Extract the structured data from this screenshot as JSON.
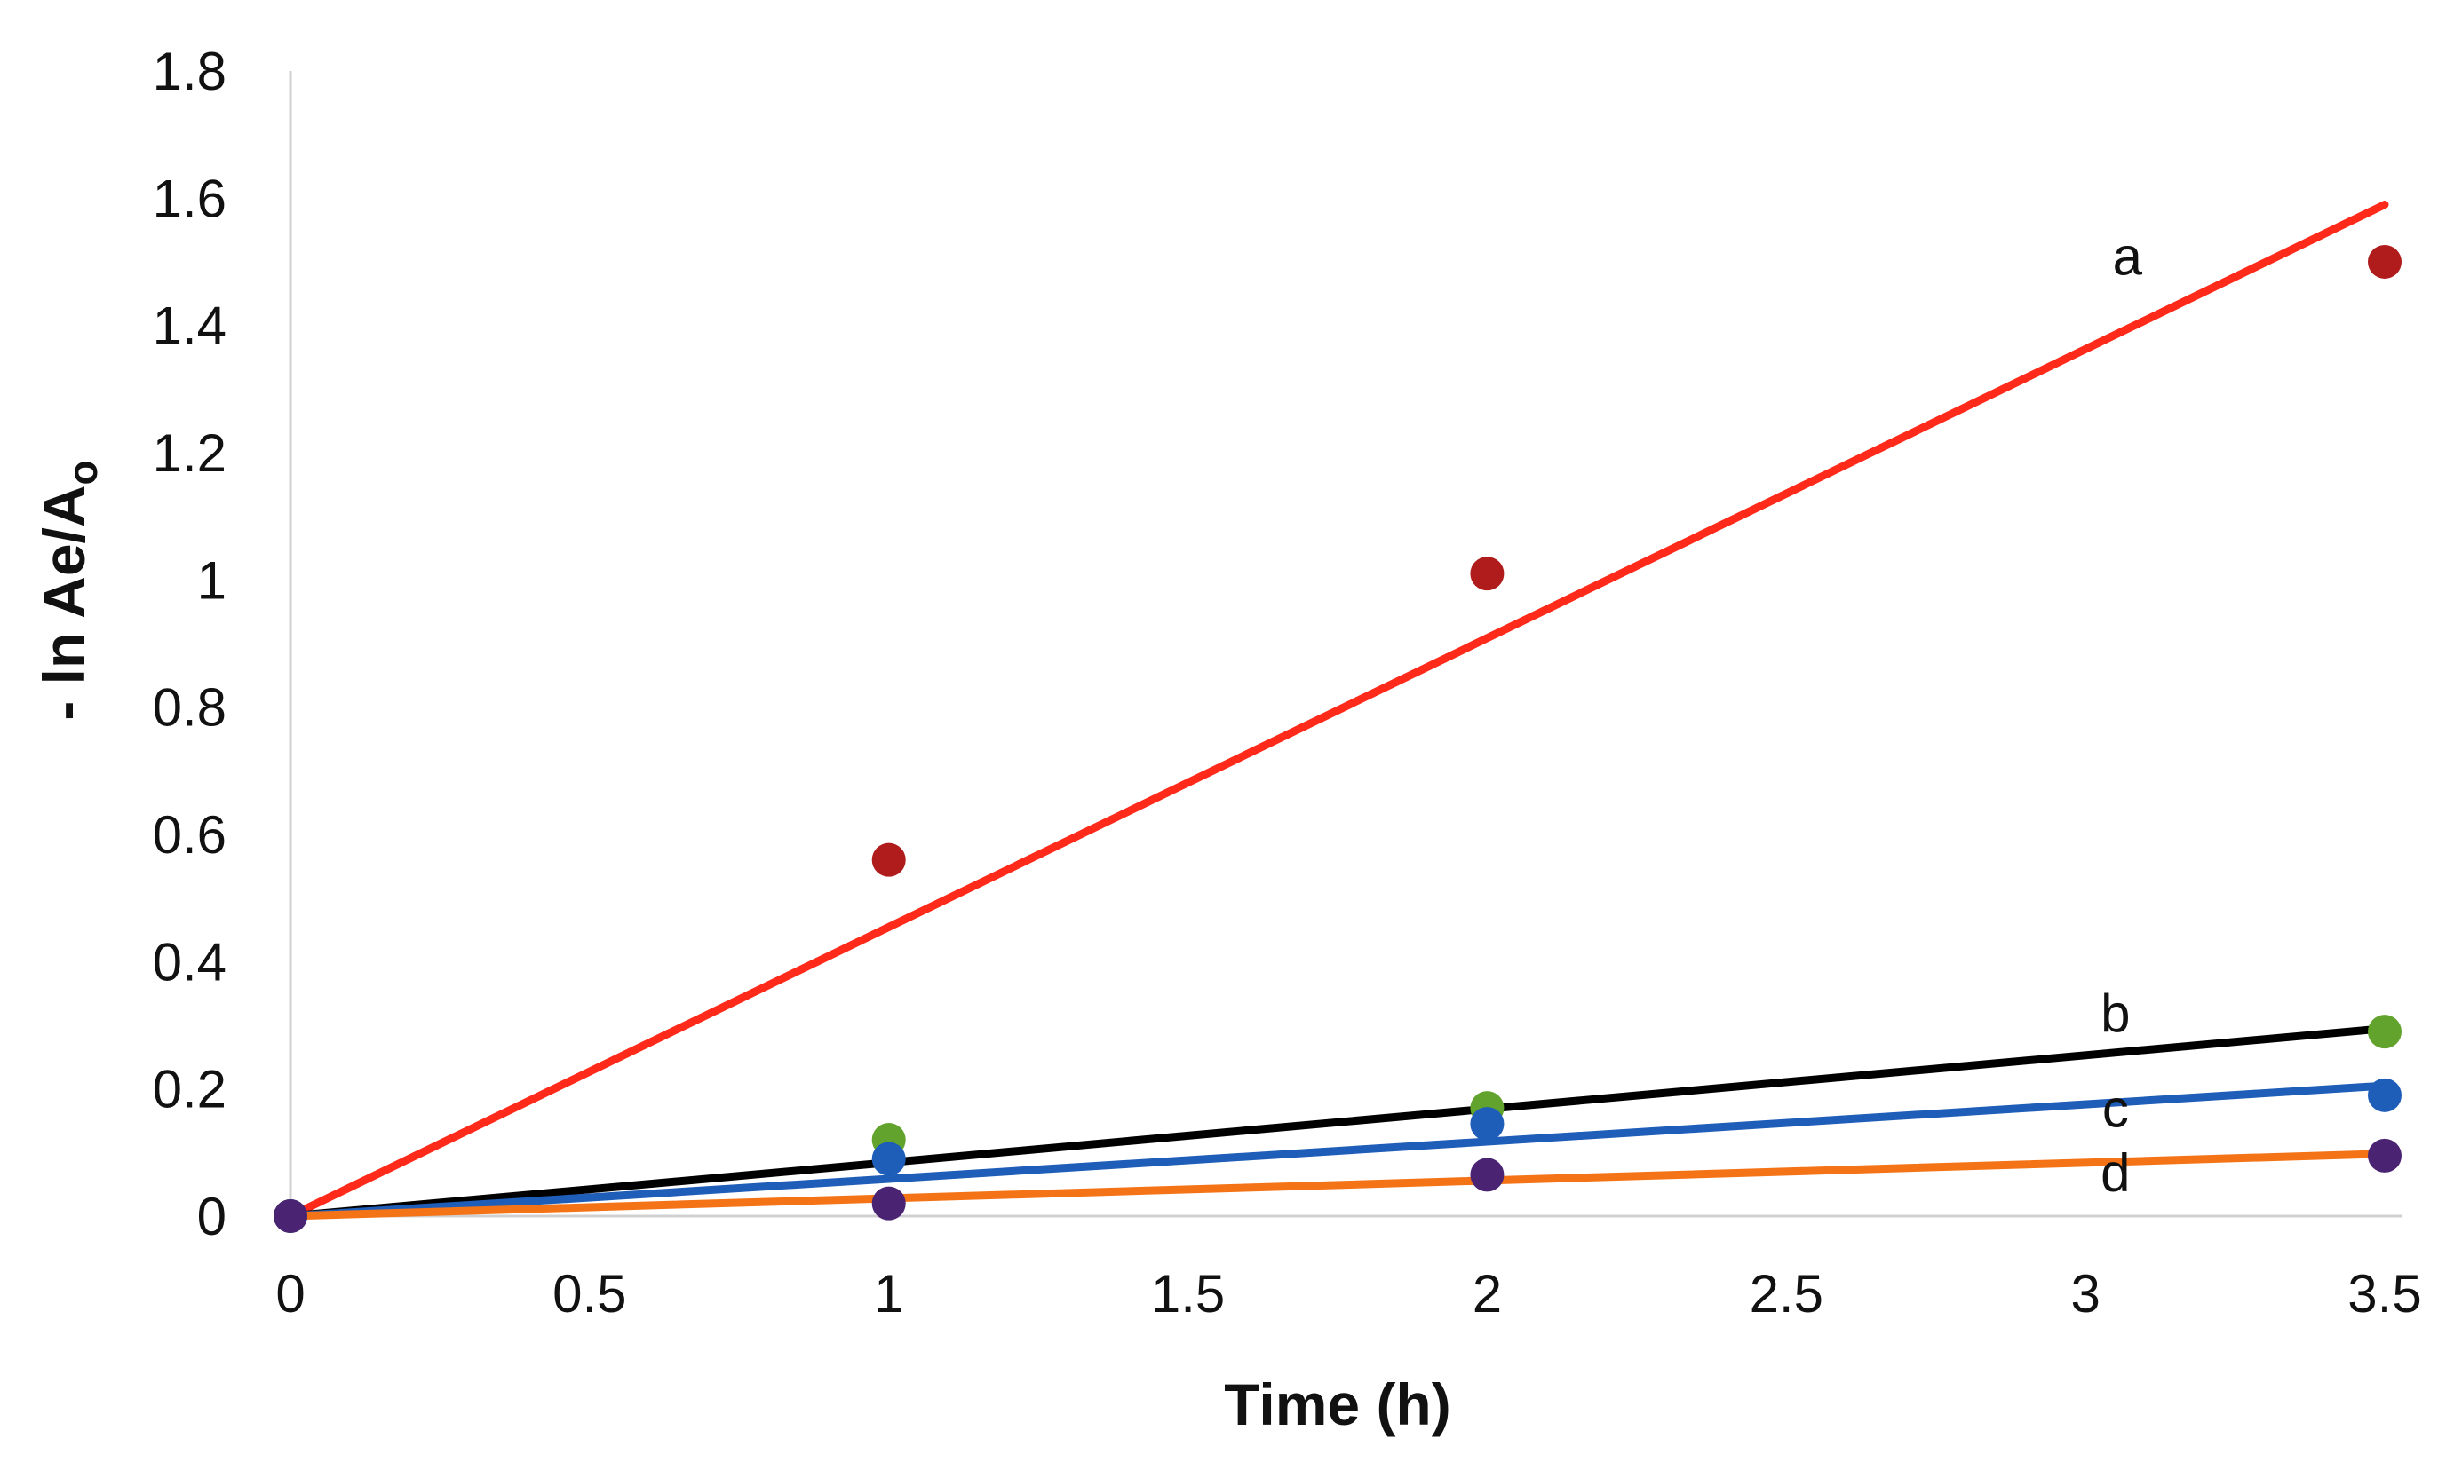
{
  "chart_data": {
    "type": "scatter",
    "title": "",
    "xlabel": "Time (h)",
    "ylabel_main": "- ln Ae/A",
    "ylabel_sub": "o",
    "xlim": [
      0,
      3.5
    ],
    "ylim": [
      0,
      1.8
    ],
    "xticks": [
      "0",
      "0.5",
      "1",
      "1.5",
      "2",
      "2.5",
      "3",
      "3.5"
    ],
    "xtick_values": [
      0,
      0.5,
      1,
      1.5,
      2,
      2.5,
      3,
      3.5
    ],
    "yticks": [
      "0",
      "0.2",
      "0.4",
      "0.6",
      "0.8",
      "1",
      "1.2",
      "1.4",
      "1.6",
      "1.8"
    ],
    "ytick_values": [
      0,
      0.2,
      0.4,
      0.6,
      0.8,
      1,
      1.2,
      1.4,
      1.6,
      1.8
    ],
    "grid": false,
    "series": [
      {
        "name": "a",
        "x": [
          0,
          1,
          2,
          3.5
        ],
        "y": [
          0,
          0.56,
          1.01,
          1.5
        ],
        "marker_color": "#B01C1C",
        "trendline_color": "#FF2A1A",
        "trendline_end": [
          3.5,
          1.59
        ],
        "label_pos": [
          3.07,
          1.48
        ]
      },
      {
        "name": "b",
        "x": [
          0,
          1,
          2,
          3.5
        ],
        "y": [
          0,
          0.12,
          0.17,
          0.29
        ],
        "marker_color": "#62A32E",
        "trendline_color": "#000000",
        "trendline_end": [
          3.5,
          0.295
        ],
        "label_pos": [
          3.05,
          0.29
        ]
      },
      {
        "name": "c",
        "x": [
          0,
          1,
          2,
          3.5
        ],
        "y": [
          0,
          0.09,
          0.145,
          0.19
        ],
        "marker_color": "#1E5DB8",
        "trendline_color": "#1E5DB8",
        "trendline_end": [
          3.5,
          0.205
        ],
        "label_pos": [
          3.05,
          0.14
        ]
      },
      {
        "name": "d",
        "x": [
          0,
          1,
          2,
          3.5
        ],
        "y": [
          0,
          0.02,
          0.065,
          0.095
        ],
        "marker_color": "#4A2473",
        "trendline_color": "#F47316",
        "trendline_end": [
          3.5,
          0.098
        ],
        "label_pos": [
          3.05,
          0.04
        ]
      }
    ]
  }
}
